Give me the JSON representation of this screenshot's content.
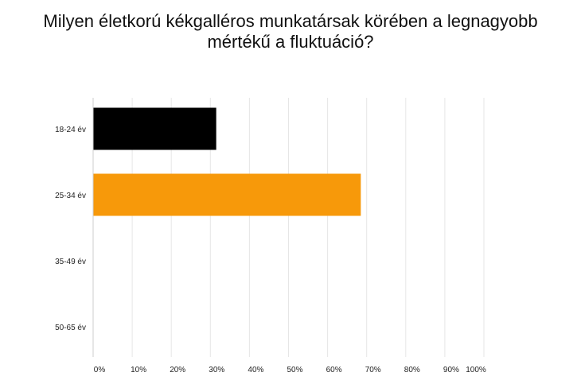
{
  "chart_data": {
    "type": "bar",
    "orientation": "horizontal",
    "title": [
      "Milyen életkorú kékgalléros munkatársak körében a legnagyobb",
      "mértékű a fluktuáció?"
    ],
    "categories": [
      "18-24 év",
      "25-34 év",
      "35-49 év",
      "50-65 év"
    ],
    "values": [
      31.5,
      68.5,
      0,
      0
    ],
    "colors": [
      "#000000",
      "#f7990a",
      "#000000",
      "#000000"
    ],
    "xlim": [
      0,
      100
    ],
    "xticks": [
      0,
      10,
      20,
      30,
      40,
      50,
      60,
      70,
      80,
      90,
      100
    ],
    "xtick_labels": [
      "0%",
      "10%",
      "20%",
      "30%",
      "40%",
      "50%",
      "60%",
      "70%",
      "80%",
      "90%",
      "100%"
    ],
    "grid": true,
    "legend": "none"
  }
}
